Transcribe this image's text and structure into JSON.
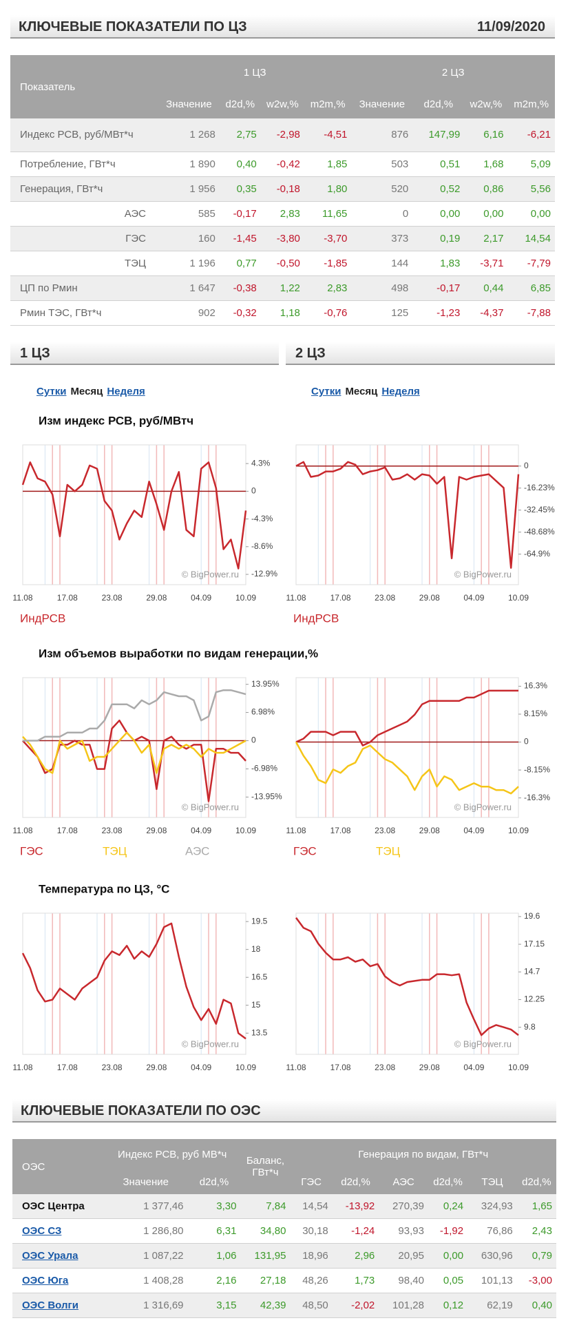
{
  "header": {
    "title": "КЛЮЧЕВЫЕ ПОКАЗАТЕЛИ ПО ЦЗ",
    "date": "11/09/2020"
  },
  "zone_table": {
    "group_label": "Показатель",
    "groups": [
      "1 ЦЗ",
      "2 ЦЗ"
    ],
    "columns": [
      "Значение",
      "d2d,%",
      "w2w,%",
      "m2m,%"
    ],
    "rows": [
      {
        "label": "Индекс РСВ, руб/МВт*ч",
        "cells": [
          "1 268",
          "2,75",
          "-2,98",
          "-4,51",
          "876",
          "147,99",
          "6,16",
          "-6,21"
        ]
      },
      {
        "label": "Потребление, ГВт*ч",
        "cells": [
          "1 890",
          "0,40",
          "-0,42",
          "1,85",
          "503",
          "0,51",
          "1,68",
          "5,09"
        ]
      },
      {
        "label": "Генерация, ГВт*ч",
        "cells": [
          "1 956",
          "0,35",
          "-0,18",
          "1,80",
          "520",
          "0,52",
          "0,86",
          "5,56"
        ]
      },
      {
        "label": "АЭС",
        "sub": true,
        "cells": [
          "585",
          "-0,17",
          "2,83",
          "11,65",
          "0",
          "0,00",
          "0,00",
          "0,00"
        ]
      },
      {
        "label": "ГЭС",
        "sub": true,
        "cells": [
          "160",
          "-1,45",
          "-3,80",
          "-3,70",
          "373",
          "0,19",
          "2,17",
          "14,54"
        ]
      },
      {
        "label": "ТЭЦ",
        "sub": true,
        "cells": [
          "1 196",
          "0,77",
          "-0,50",
          "-1,85",
          "144",
          "1,83",
          "-3,71",
          "-7,79"
        ]
      },
      {
        "label": "ЦП по Рмин",
        "cells": [
          "1 647",
          "-0,38",
          "1,22",
          "2,83",
          "498",
          "-0,17",
          "0,44",
          "6,85"
        ]
      },
      {
        "label": "Рмин ТЭС, ГВт*ч",
        "cells": [
          "902",
          "-0,32",
          "1,18",
          "-0,76",
          "125",
          "-1,23",
          "-4,37",
          "-7,88"
        ]
      }
    ]
  },
  "zones": [
    {
      "title": "1 ЦЗ",
      "periods": [
        "Сутки",
        "Месяц",
        "Неделя"
      ],
      "active_period": 1
    },
    {
      "title": "2 ЦЗ",
      "periods": [
        "Сутки",
        "Месяц",
        "Неделя"
      ],
      "active_period": 1
    }
  ],
  "chart_titles": [
    "Изм индекс РСВ, руб/МВтч",
    "Изм объемов выработки по видам генерации,%",
    "Температура по ЦЗ, °С"
  ],
  "chart_data": [
    {
      "type": "line",
      "watermark": "© BigPower.ru",
      "categories": [
        "11.08",
        null,
        null,
        null,
        null,
        null,
        "17.08",
        null,
        null,
        null,
        null,
        null,
        "23.08",
        null,
        null,
        null,
        null,
        null,
        "29.08",
        null,
        null,
        null,
        null,
        null,
        "04.09",
        null,
        null,
        null,
        null,
        null,
        "10.09"
      ],
      "series": [
        {
          "name": "ИндРСВ",
          "color": "#c8282d",
          "values": [
            1,
            4.5,
            2,
            1.5,
            -0.5,
            -7,
            1,
            0,
            1,
            4,
            3.5,
            -1.5,
            -3,
            -7.5,
            -5,
            -3,
            -4,
            1.5,
            -2,
            -6,
            0,
            3,
            -6,
            -7,
            3.5,
            4.5,
            0.5,
            -9,
            -7.5,
            -12,
            -3
          ]
        }
      ],
      "ylim": [
        -14.5,
        7.2
      ],
      "yticks": [
        {
          "value": 4.3,
          "label": "4.3%"
        },
        0,
        {
          "value": -4.3,
          "label": "-4.3%"
        },
        {
          "value": -8.6,
          "label": "-8.6%"
        },
        {
          "value": -12.9,
          "label": "-12.9%"
        }
      ]
    },
    {
      "type": "line",
      "watermark": "© BigPower.ru",
      "categories": [
        "11.08",
        null,
        null,
        null,
        null,
        null,
        "17.08",
        null,
        null,
        null,
        null,
        null,
        "23.08",
        null,
        null,
        null,
        null,
        null,
        "29.08",
        null,
        null,
        null,
        null,
        null,
        "04.09",
        null,
        null,
        null,
        null,
        null,
        "10.09"
      ],
      "series": [
        {
          "name": "ИндРСВ",
          "color": "#c8282d",
          "values": [
            0,
            3,
            -8,
            -7,
            -4,
            -4,
            -2,
            3,
            1,
            -6,
            -4,
            -3,
            -1,
            -10,
            -9,
            -6,
            -10,
            -6,
            -7,
            -13,
            -8,
            -68,
            -8,
            -10,
            -8,
            -7,
            -6,
            -11,
            -16,
            -75,
            -6
          ]
        }
      ],
      "ylim": [
        -87.4,
        15.6
      ],
      "yticks": [
        0,
        {
          "value": -16.23,
          "label": "-16.23%"
        },
        {
          "value": -32.45,
          "label": "-32.45%"
        },
        {
          "value": -48.68,
          "label": "-48.68%"
        },
        {
          "value": -64.9,
          "label": "-64.9%"
        }
      ]
    },
    {
      "type": "line",
      "watermark": "© BigPower.ru",
      "categories": [
        "11.08",
        null,
        null,
        null,
        null,
        null,
        "17.08",
        null,
        null,
        null,
        null,
        null,
        "23.08",
        null,
        null,
        null,
        null,
        null,
        "29.08",
        null,
        null,
        null,
        null,
        null,
        "04.09",
        null,
        null,
        null,
        null,
        null,
        "10.09"
      ],
      "series": [
        {
          "name": "ГЭС",
          "color": "#c8282d",
          "values": [
            0,
            -2,
            -4,
            -8,
            -7,
            -1,
            -1,
            0,
            -1,
            -1,
            -7,
            -7,
            3,
            5,
            2,
            0,
            1,
            0,
            -12,
            0,
            1,
            -1,
            -2,
            -1,
            -1,
            -15,
            -2,
            -2,
            -3,
            -3,
            -5
          ]
        },
        {
          "name": "ТЭЦ",
          "color": "#f5c518",
          "values": [
            1,
            -1,
            -4,
            -7,
            -8,
            0,
            -2,
            -1,
            0,
            -5,
            -4,
            -4,
            -2,
            0,
            2,
            0,
            -3,
            -1,
            -8,
            -2,
            -1,
            -2,
            -1,
            -2,
            -4,
            -2,
            -3,
            -3,
            -2,
            -1,
            0
          ]
        },
        {
          "name": "АЭС",
          "color": "#aaaaaa",
          "values": [
            0,
            0,
            0,
            1,
            1,
            1,
            2,
            2,
            2,
            3,
            3,
            5,
            9,
            9,
            9,
            8,
            10,
            9,
            10,
            12,
            11.5,
            11,
            11,
            10,
            5,
            6,
            12,
            12.5,
            12.5,
            12,
            11.5
          ]
        }
      ],
      "ylim": [
        -19,
        15.6
      ],
      "yticks": [
        {
          "value": 13.95,
          "label": "13.95%"
        },
        {
          "value": 6.98,
          "label": "6.98%"
        },
        0,
        {
          "value": -6.98,
          "label": "-6.98%"
        },
        {
          "value": -13.95,
          "label": "-13.95%"
        }
      ]
    },
    {
      "type": "line",
      "watermark": "© BigPower.ru",
      "categories": [
        "11.08",
        null,
        null,
        null,
        null,
        null,
        "17.08",
        null,
        null,
        null,
        null,
        null,
        "23.08",
        null,
        null,
        null,
        null,
        null,
        "29.08",
        null,
        null,
        null,
        null,
        null,
        "04.09",
        null,
        null,
        null,
        null,
        null,
        "10.09"
      ],
      "series": [
        {
          "name": "ГЭС",
          "color": "#c8282d",
          "values": [
            0,
            1,
            3,
            3,
            3,
            2,
            3,
            3,
            3,
            -1,
            0,
            2,
            3,
            4,
            5,
            6,
            8,
            11,
            12,
            12,
            12,
            12,
            12,
            13,
            13,
            14,
            15,
            15,
            15,
            15,
            15
          ]
        },
        {
          "name": "ТЭЦ",
          "color": "#f5c518",
          "values": [
            0,
            -4,
            -7,
            -11,
            -12,
            -8,
            -9,
            -7,
            -6,
            -2,
            -1,
            -3,
            -5,
            -6,
            -8,
            -10,
            -14,
            -10,
            -8,
            -13,
            -10,
            -11,
            -14,
            -13,
            -12,
            -13,
            -13,
            -14,
            -14,
            -15,
            -13
          ]
        }
      ],
      "ylim": [
        -22,
        18.8
      ],
      "yticks": [
        {
          "value": 16.3,
          "label": "16.3%"
        },
        {
          "value": 8.15,
          "label": "8.15%"
        },
        0,
        {
          "value": -8.15,
          "label": "-8.15%"
        },
        {
          "value": -16.3,
          "label": "-16.3%"
        }
      ]
    },
    {
      "type": "line",
      "watermark": "© BigPower.ru",
      "color": "#c8282d",
      "categories": [
        "11.08",
        null,
        null,
        null,
        null,
        null,
        "17.08",
        null,
        null,
        null,
        null,
        null,
        "23.08",
        null,
        null,
        null,
        null,
        null,
        "29.08",
        null,
        null,
        null,
        null,
        null,
        "04.09",
        null,
        null,
        null,
        null,
        null,
        "10.09"
      ],
      "values": [
        17.8,
        17,
        15.8,
        15.2,
        15.3,
        15.9,
        15.6,
        15.3,
        15.9,
        16.2,
        16.5,
        17.4,
        17.9,
        17.7,
        18.2,
        17.5,
        17.9,
        17.6,
        18.3,
        19.2,
        19.4,
        17.6,
        16,
        14.9,
        14.2,
        14.8,
        14,
        15.3,
        15.1,
        13.5,
        13.2
      ],
      "ylim": [
        12.36,
        19.95
      ],
      "yticks": [
        19.5,
        18,
        16.5,
        15,
        13.5
      ]
    },
    {
      "type": "line",
      "watermark": "© BigPower.ru",
      "color": "#c8282d",
      "categories": [
        "11.08",
        null,
        null,
        null,
        null,
        null,
        "17.08",
        null,
        null,
        null,
        null,
        null,
        "23.08",
        null,
        null,
        null,
        null,
        null,
        "29.08",
        null,
        null,
        null,
        null,
        null,
        "04.09",
        null,
        null,
        null,
        null,
        null,
        "10.09"
      ],
      "values": [
        19.5,
        18.6,
        18.3,
        17.2,
        16.4,
        15.8,
        15.8,
        16.0,
        15.6,
        15.8,
        15.2,
        15.4,
        14.3,
        13.8,
        13.5,
        13.8,
        13.9,
        14.0,
        14.0,
        14.5,
        14.5,
        14.4,
        14.5,
        12.0,
        10.5,
        9.1,
        9.7,
        10.0,
        9.8,
        9.6,
        9.1
      ],
      "ylim": [
        7.4,
        19.9
      ],
      "yticks": [
        19.6,
        17.15,
        14.7,
        12.25,
        9.8
      ]
    }
  ],
  "oes_table": {
    "title": "КЛЮЧЕВЫЕ ПОКАЗАТЕЛИ ПО ОЭС",
    "headers": {
      "name": "ОЭС",
      "index": "Индекс РСВ, руб МВ*ч",
      "balance": "Баланс, ГВт*ч",
      "generation": "Генерация по видам, ГВт*ч"
    },
    "subcolumns": [
      "Значение",
      "d2d,%",
      "ГЭС",
      "d2d,%",
      "АЭС",
      "d2d,%",
      "ТЭЦ",
      "d2d,%"
    ],
    "rows": [
      {
        "name": "ОЭС Центра",
        "cells": [
          "1 377,46",
          "3,30",
          "7,84",
          "14,54",
          "-13,92",
          "270,39",
          "0,24",
          "324,93",
          "1,65"
        ]
      },
      {
        "name": "ОЭС СЗ",
        "cells": [
          "1 286,80",
          "6,31",
          "34,80",
          "30,18",
          "-1,24",
          "93,93",
          "-1,92",
          "76,86",
          "2,43"
        ]
      },
      {
        "name": "ОЭС Урала",
        "cells": [
          "1 087,22",
          "1,06",
          "131,95",
          "18,96",
          "2,96",
          "20,95",
          "0,00",
          "630,96",
          "0,79"
        ]
      },
      {
        "name": "ОЭС Юга",
        "cells": [
          "1 408,28",
          "2,16",
          "27,18",
          "48,26",
          "1,73",
          "98,40",
          "0,05",
          "101,13",
          "-3,00"
        ]
      },
      {
        "name": "ОЭС Волги",
        "cells": [
          "1 316,69",
          "3,15",
          "42,39",
          "48,50",
          "-2,02",
          "101,28",
          "0,12",
          "62,19",
          "0,40"
        ]
      }
    ]
  }
}
